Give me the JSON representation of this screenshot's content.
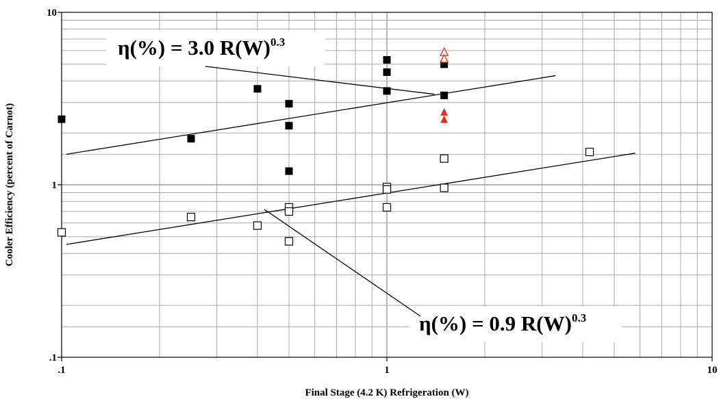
{
  "chart_data": {
    "type": "scatter",
    "title": "",
    "xlabel": "Final Stage (4.2 K) Refrigeration (W)",
    "ylabel": "Cooler Efficiency (percent of Carnot)",
    "xscale": "log",
    "yscale": "log",
    "xlim": [
      0.1,
      10
    ],
    "ylim": [
      0.1,
      10
    ],
    "grid": true,
    "x_tick_labels": [
      ".1",
      "1",
      "10"
    ],
    "y_tick_labels": [
      ".1",
      "1",
      "10"
    ],
    "series": [
      {
        "marker": "filled-square",
        "color": "#000000",
        "points": [
          [
            0.1,
            2.4
          ],
          [
            0.25,
            1.85
          ],
          [
            0.4,
            3.6
          ],
          [
            0.5,
            2.95
          ],
          [
            0.5,
            2.2
          ],
          [
            0.5,
            1.2
          ],
          [
            1.0,
            5.3
          ],
          [
            1.0,
            4.5
          ],
          [
            1.0,
            3.5
          ],
          [
            1.5,
            5.0
          ],
          [
            1.5,
            3.3
          ]
        ]
      },
      {
        "marker": "open-square",
        "color": "#000000",
        "points": [
          [
            0.1,
            0.53
          ],
          [
            0.25,
            0.65
          ],
          [
            0.4,
            0.58
          ],
          [
            0.5,
            0.74
          ],
          [
            0.5,
            0.7
          ],
          [
            0.5,
            0.47
          ],
          [
            1.0,
            0.97
          ],
          [
            1.0,
            0.94
          ],
          [
            1.0,
            0.74
          ],
          [
            1.5,
            1.42
          ],
          [
            1.5,
            0.96
          ],
          [
            4.2,
            1.55
          ]
        ]
      },
      {
        "marker": "open-triangle",
        "color": "#e0301e",
        "points": [
          [
            1.5,
            5.9
          ],
          [
            1.5,
            5.4
          ]
        ]
      },
      {
        "marker": "filled-triangle",
        "color": "#e0301e",
        "points": [
          [
            1.5,
            2.65
          ],
          [
            1.5,
            2.4
          ]
        ]
      }
    ],
    "fit_lines": [
      {
        "coef": 3.0,
        "exponent": 0.3,
        "x_range": [
          0.1,
          3.3
        ]
      },
      {
        "coef": 0.9,
        "exponent": 0.3,
        "x_range": [
          0.1,
          5.8
        ]
      }
    ],
    "annotations": [
      {
        "text": "η(%) = 3.0 R(W)",
        "sup": "0.3",
        "arrow_to": [
          1.4,
          3.35
        ]
      },
      {
        "text": "η(%) = 0.9 R(W)",
        "sup": "0.3",
        "arrow_to": [
          0.42,
          0.72
        ]
      }
    ]
  }
}
